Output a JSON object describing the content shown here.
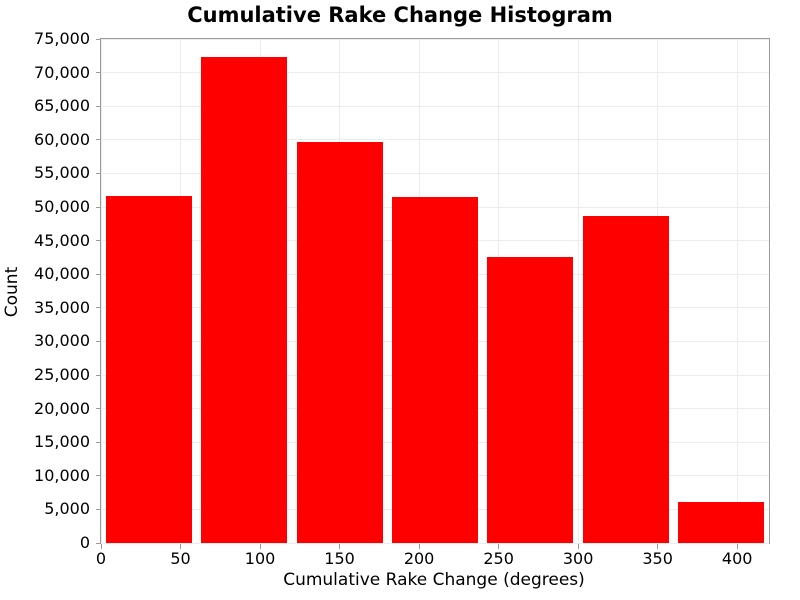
{
  "chart_data": {
    "type": "bar",
    "subtype": "histogram",
    "title": "Cumulative Rake Change Histogram",
    "xlabel": "Cumulative Rake Change (degrees)",
    "ylabel": "Count",
    "bin_edges": [
      0,
      60,
      120,
      180,
      240,
      300,
      360,
      420
    ],
    "values": [
      51700,
      72300,
      59700,
      51500,
      42600,
      48600,
      6100
    ],
    "rwidth": 0.9,
    "xlim": [
      0,
      420
    ],
    "ylim": [
      0,
      75000
    ],
    "x_tick_labels": [
      "0",
      "50",
      "100",
      "150",
      "200",
      "250",
      "300",
      "350",
      "400"
    ],
    "y_tick_labels": [
      "0",
      "5,000",
      "10,000",
      "15,000",
      "20,000",
      "25,000",
      "30,000",
      "35,000",
      "40,000",
      "45,000",
      "50,000",
      "55,000",
      "60,000",
      "65,000",
      "70,000",
      "75,000"
    ],
    "grid": true,
    "legend": false,
    "style": {
      "bar_color": "#ff0000",
      "grid_color": "#ececec",
      "spine_color": "#9a9a9a",
      "text_color": "#000000",
      "background": "#ffffff"
    }
  }
}
